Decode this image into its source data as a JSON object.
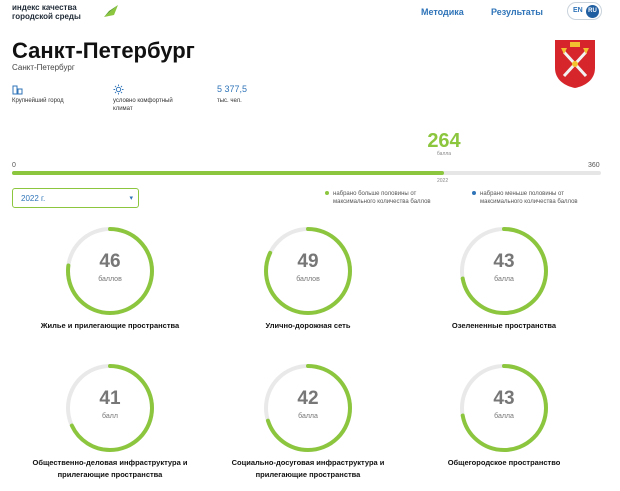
{
  "header": {
    "logo_line1": "индекс качества",
    "logo_line2": "городской среды",
    "nav": {
      "method": "Методика",
      "results": "Результаты"
    },
    "lang": {
      "en": "EN",
      "ru": "RU",
      "active": "RU"
    }
  },
  "city": {
    "title": "Санкт-Петербург",
    "subtitle": "Санкт-Петербург",
    "facts": [
      {
        "icon": "buildings-icon",
        "value": "",
        "label": "Крупнейший город"
      },
      {
        "icon": "sun-icon",
        "value": "",
        "label": "условно комфортный климат"
      },
      {
        "icon": "",
        "value": "5 377,5",
        "label": "тыс. чел."
      }
    ]
  },
  "total": {
    "score": "264",
    "unit": "балла",
    "min": "0",
    "max": "360",
    "progress_value": 264,
    "progress_max": 360,
    "year_tick": "2022"
  },
  "filters": {
    "year_value": "2022 г.",
    "caret": "▾"
  },
  "legend": {
    "above_half": "набрано больше половины от максимального количества баллов",
    "below_half": "набрано меньше половины от максимального количества баллов",
    "colors": {
      "above": "#8cc63f",
      "below": "#2f74b8"
    }
  },
  "colors": {
    "accent_green": "#8cc63f",
    "accent_blue": "#2f74b8",
    "ring_track": "#e9e9e9"
  },
  "categories": [
    {
      "score": "46",
      "unit": "баллов",
      "label": "Жилье и прилегающие пространства",
      "progress": 0.77
    },
    {
      "score": "49",
      "unit": "баллов",
      "label": "Улично-дорожная сеть",
      "progress": 0.82
    },
    {
      "score": "43",
      "unit": "балла",
      "label": "Озелененные пространства",
      "progress": 0.72
    },
    {
      "score": "41",
      "unit": "балл",
      "label": "Общественно-деловая инфраструктура и прилегающие пространства",
      "progress": 0.68
    },
    {
      "score": "42",
      "unit": "балла",
      "label": "Социально-досуговая инфраструктура и прилегающие пространства",
      "progress": 0.7
    },
    {
      "score": "43",
      "unit": "балла",
      "label": "Общегородское пространство",
      "progress": 0.72
    }
  ]
}
